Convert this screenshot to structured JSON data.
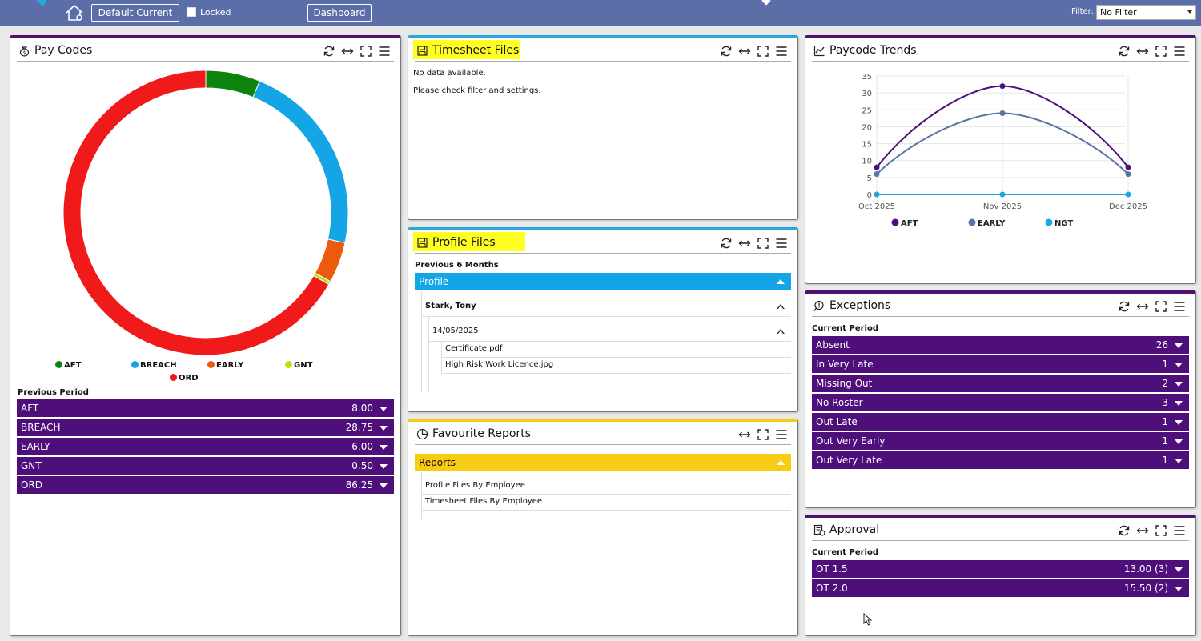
{
  "topbar": {
    "default_current_label": "Default Current",
    "locked_label": "Locked",
    "dashboard_label": "Dashboard",
    "filter_label": "Filter:",
    "filter_value": "No Filter"
  },
  "panel_tools": {
    "refresh": "refresh-icon",
    "resize": "horizontal-resize-icon",
    "fullscreen": "fullscreen-icon",
    "menu": "menu-icon"
  },
  "pay_codes": {
    "title": "Pay Codes",
    "legend": [
      {
        "label": "AFT",
        "color": "#0e830e"
      },
      {
        "label": "BREACH",
        "color": "#14a5e6"
      },
      {
        "label": "EARLY",
        "color": "#ec5a0d"
      },
      {
        "label": "GNT",
        "color": "#b3e614"
      },
      {
        "label": "ORD",
        "color": "#f01a1a"
      }
    ],
    "caption": "Previous Period",
    "rows": [
      {
        "label": "AFT",
        "value": "8.00"
      },
      {
        "label": "BREACH",
        "value": "28.75"
      },
      {
        "label": "EARLY",
        "value": "6.00"
      },
      {
        "label": "GNT",
        "value": "0.50"
      },
      {
        "label": "ORD",
        "value": "86.25"
      }
    ]
  },
  "chart_data": [
    {
      "type": "pie",
      "categories": [
        "AFT",
        "BREACH",
        "EARLY",
        "GNT",
        "ORD"
      ],
      "values": [
        8.0,
        28.75,
        6.0,
        0.5,
        86.25
      ],
      "colors": [
        "#0e830e",
        "#14a5e6",
        "#ec5a0d",
        "#b3e614",
        "#f01a1a"
      ],
      "legend": "bottom"
    },
    {
      "type": "line",
      "x": [
        "Oct 2025",
        "Nov 2025",
        "Dec 2025"
      ],
      "series": [
        {
          "name": "AFT",
          "values": [
            8,
            32,
            8
          ],
          "color": "#4e0f7a"
        },
        {
          "name": "EARLY",
          "values": [
            6,
            24,
            6
          ],
          "color": "#5b72a8"
        },
        {
          "name": "NGT",
          "values": [
            0,
            0,
            0
          ],
          "color": "#1aa8e0"
        }
      ],
      "yticks": [
        "0",
        "5",
        "10",
        "15",
        "20",
        "25",
        "30",
        "35"
      ],
      "ylim": [
        0,
        35
      ],
      "grid": true,
      "legend": "bottom"
    }
  ],
  "timesheet_files": {
    "title": "Timesheet Files",
    "line1": "No data available.",
    "line2": "Please check filter and settings."
  },
  "profile_files": {
    "title": "Profile Files",
    "caption": "Previous 6 Months",
    "group": "Profile",
    "employee": "Stark, Tony",
    "date": "14/05/2025",
    "files": [
      "Certificate.pdf",
      "High Risk Work Licence.jpg"
    ]
  },
  "favourite_reports": {
    "title": "Favourite Reports",
    "group": "Reports",
    "items": [
      "Profile Files By Employee",
      "Timesheet Files By Employee"
    ]
  },
  "paycode_trends": {
    "title": "Paycode Trends"
  },
  "exceptions": {
    "title": "Exceptions",
    "caption": "Current Period",
    "rows": [
      {
        "label": "Absent",
        "value": "26"
      },
      {
        "label": "In Very Late",
        "value": "1"
      },
      {
        "label": "Missing Out",
        "value": "2"
      },
      {
        "label": "No Roster",
        "value": "3"
      },
      {
        "label": "Out Late",
        "value": "1"
      },
      {
        "label": "Out Very Early",
        "value": "1"
      },
      {
        "label": "Out Very Late",
        "value": "1"
      }
    ]
  },
  "approval": {
    "title": "Approval",
    "caption": "Current Period",
    "rows": [
      {
        "label": "OT 1.5",
        "value": "13.00 (3)"
      },
      {
        "label": "OT 2.0",
        "value": "15.50 (2)"
      }
    ]
  }
}
